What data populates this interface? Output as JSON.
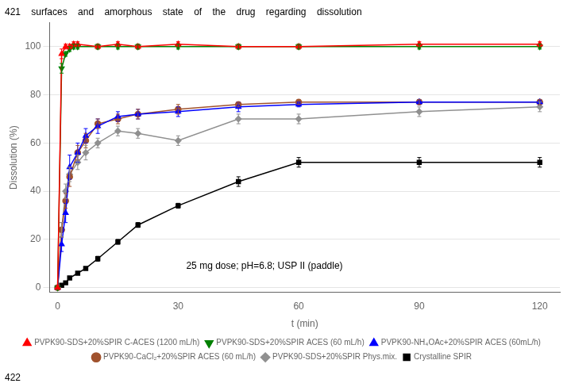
{
  "chart_data": {
    "type": "line",
    "title": "421    surfaces    and    amorphous    state    of    the    drug    regarding    dissolution",
    "footer": "422",
    "x_label": "t (min)",
    "y_label": "Dissolution (%)",
    "annotations": [
      {
        "text": "25 mg dose; pH=6.8; USP II (paddle)",
        "x": 32,
        "y": 7
      }
    ],
    "xlim": [
      -2,
      125
    ],
    "xticks": [
      0,
      30,
      90,
      60,
      120
    ],
    "ylim": [
      -2,
      110
    ],
    "yticks": [
      0,
      20,
      40,
      60,
      80,
      100
    ],
    "grid": "y",
    "legend": "bottom",
    "series": [
      {
        "name": "PVPK90-SDS+20%SPIR C-ACES (1200 mL/h)",
        "color": "#ff0000",
        "marker": "triangle-up",
        "x": [
          0,
          1,
          2,
          3,
          4,
          5,
          10,
          15,
          20,
          30,
          45,
          60,
          90,
          120
        ],
        "values": [
          0,
          97,
          100,
          100,
          101,
          101,
          100,
          101,
          100,
          101,
          100,
          100,
          101,
          101
        ],
        "yerr": [
          0,
          2,
          1,
          1,
          1,
          1,
          1,
          1,
          1,
          1,
          1,
          1,
          1,
          1
        ]
      },
      {
        "name": "PVPK90-SDS+20%SPIR ACES (60 mL/h)",
        "color": "#008000",
        "marker": "triangle-down",
        "x": [
          0,
          1,
          2,
          3,
          4,
          5,
          10,
          15,
          20,
          30,
          45,
          60,
          90,
          120
        ],
        "values": [
          0,
          91,
          97,
          99,
          100,
          100,
          100,
          100,
          100,
          100,
          100,
          100,
          100,
          100
        ],
        "yerr": [
          0,
          2,
          1,
          1,
          1,
          1,
          1,
          1,
          1,
          1,
          1,
          1,
          1,
          1
        ]
      },
      {
        "name": "PVPK90-NH₄OAc+20%SPIR ACES (60mL/h)",
        "color": "#0000ff",
        "marker": "triangle-up",
        "x": [
          0,
          1,
          2,
          3,
          5,
          7,
          10,
          15,
          20,
          30,
          45,
          60,
          90,
          120
        ],
        "values": [
          0,
          18,
          31,
          50,
          56,
          63,
          67,
          71,
          72,
          73,
          75,
          76,
          77,
          77
        ],
        "yerr": [
          0,
          3,
          4,
          5,
          4,
          3,
          3,
          2,
          2,
          2,
          2,
          1,
          1,
          1
        ]
      },
      {
        "name": "PVPK90-CaCl₂+20%SPIR ACES (60 mL/h)",
        "color": "#a0522d",
        "marker": "circle",
        "x": [
          0,
          1,
          2,
          3,
          5,
          7,
          10,
          15,
          20,
          30,
          45,
          60,
          90,
          120
        ],
        "values": [
          0,
          24,
          36,
          46,
          56,
          61,
          68,
          70,
          72,
          74,
          76,
          77,
          77,
          77
        ],
        "yerr": [
          0,
          3,
          3,
          4,
          3,
          3,
          2,
          2,
          2,
          2,
          1,
          1,
          1,
          1
        ]
      },
      {
        "name": "PVPK90-SDS+20%SPIR Phys.mix.",
        "color": "#909090",
        "marker": "diamond",
        "x": [
          0,
          1,
          2,
          3,
          5,
          7,
          10,
          15,
          20,
          30,
          45,
          60,
          90,
          120
        ],
        "values": [
          0,
          24,
          40,
          47,
          52,
          56,
          60,
          65,
          64,
          61,
          70,
          70,
          73,
          75
        ],
        "yerr": [
          0,
          3,
          3,
          3,
          3,
          3,
          2,
          2,
          2,
          2,
          2,
          2,
          2,
          2
        ]
      },
      {
        "name": "Crystalline SPIR",
        "color": "#000000",
        "marker": "square",
        "x": [
          0,
          1,
          2,
          3,
          5,
          7,
          10,
          15,
          20,
          30,
          45,
          60,
          90,
          120
        ],
        "values": [
          0,
          1,
          2,
          4,
          6,
          8,
          12,
          19,
          26,
          34,
          44,
          52,
          52,
          52
        ],
        "yerr": [
          0,
          0.5,
          0.5,
          0.5,
          0.5,
          0.5,
          1,
          1,
          1,
          1,
          2,
          2,
          2,
          2
        ]
      }
    ]
  }
}
